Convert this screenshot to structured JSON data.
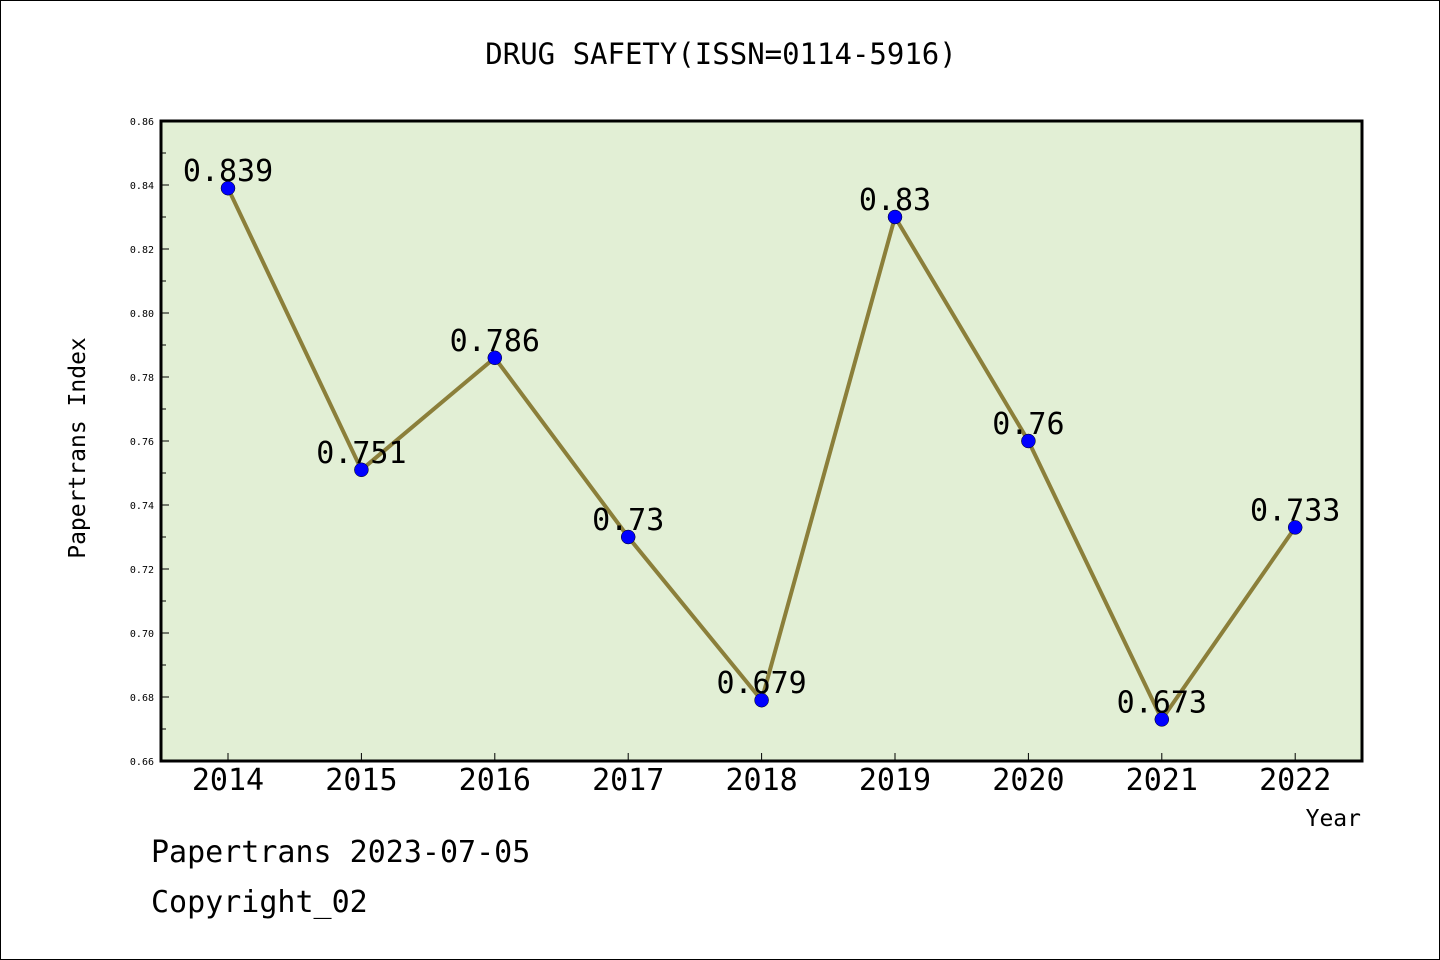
{
  "chart_data": {
    "type": "line",
    "title": "DRUG SAFETY(ISSN=0114-5916)",
    "xlabel": "Year",
    "ylabel": "Papertrans Index",
    "x": [
      "2014",
      "2015",
      "2016",
      "2017",
      "2018",
      "2019",
      "2020",
      "2021",
      "2022"
    ],
    "series": [
      {
        "values": [
          0.839,
          0.751,
          0.786,
          0.73,
          0.679,
          0.83,
          0.76,
          0.673,
          0.733
        ],
        "point_labels": [
          "0.839",
          "0.751",
          "0.786",
          "0.73",
          "0.679",
          "0.83",
          "0.76",
          "0.673",
          "0.733"
        ]
      }
    ],
    "ylim": [
      0.66,
      0.86
    ],
    "yticks": [
      "0.66",
      "0.68",
      "0.70",
      "0.72",
      "0.74",
      "0.76",
      "0.78",
      "0.80",
      "0.82",
      "0.84",
      "0.86"
    ],
    "grid": false,
    "colors": {
      "plot_background": "#e2efd5",
      "line": "#8b7f3a",
      "marker": "#0000ff"
    }
  },
  "footer": {
    "line1": "Papertrans 2023-07-05",
    "line2": "Copyright_02"
  }
}
